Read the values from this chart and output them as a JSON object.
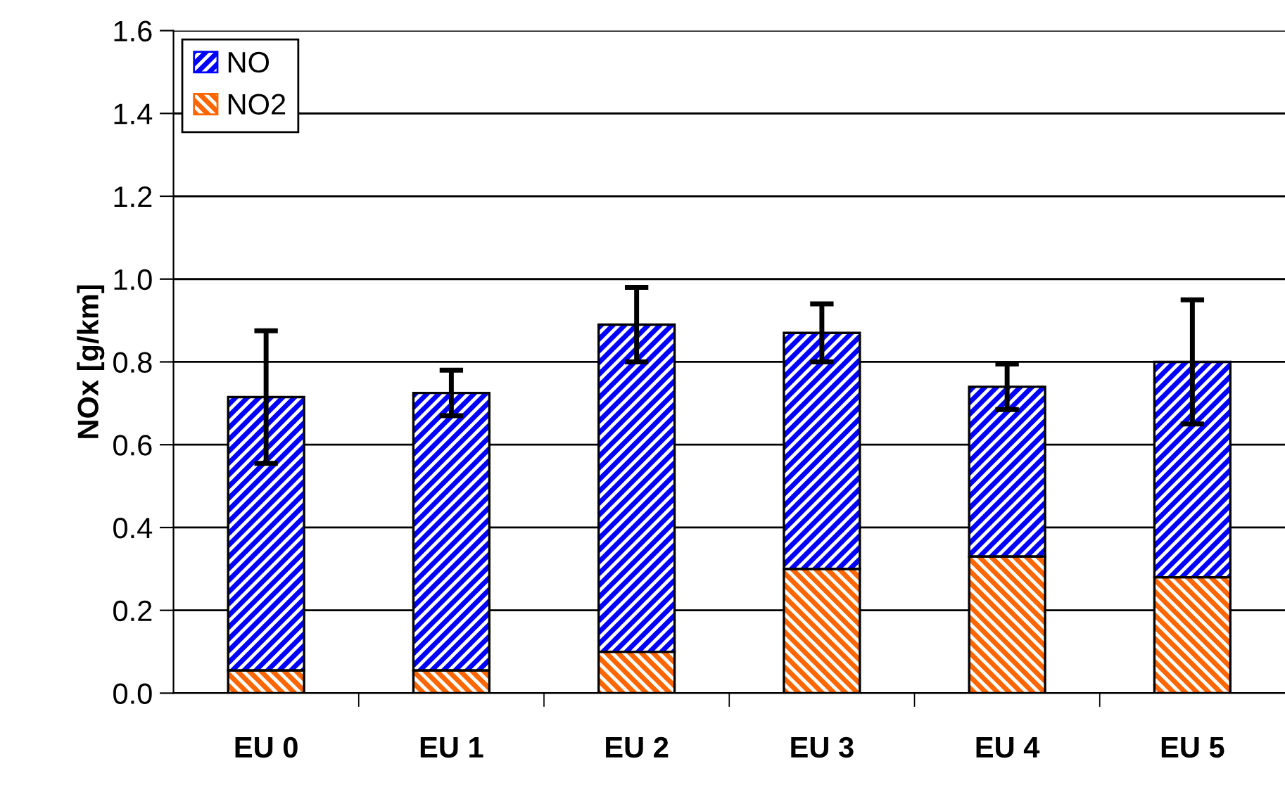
{
  "chart_data": {
    "type": "bar",
    "stacked": true,
    "ylabel": "NOx [g/km]",
    "categories": [
      "EU 0",
      "EU 1",
      "EU 2",
      "EU 3",
      "EU 4",
      "EU 5"
    ],
    "series": [
      {
        "name": "NO2",
        "color": "#ff6600",
        "values": [
          0.055,
          0.055,
          0.1,
          0.3,
          0.33,
          0.28
        ]
      },
      {
        "name": "NO",
        "color": "#0000ff",
        "values": [
          0.66,
          0.67,
          0.79,
          0.57,
          0.41,
          0.52
        ],
        "errors": [
          0.16,
          0.055,
          0.09,
          0.07,
          0.055,
          0.15
        ]
      }
    ],
    "ylim": [
      0,
      1.6
    ],
    "yticks": [
      {
        "value": 0,
        "label": "0.0"
      },
      {
        "value": 0.2,
        "label": "0.2"
      },
      {
        "value": 0.4,
        "label": "0.4"
      },
      {
        "value": 0.6,
        "label": "0.6"
      },
      {
        "value": 0.8,
        "label": "0.8"
      },
      {
        "value": 1.0,
        "label": "1.0"
      },
      {
        "value": 1.2,
        "label": "1.2"
      },
      {
        "value": 1.4,
        "label": "1.4"
      },
      {
        "value": 1.6,
        "label": "1.6"
      }
    ],
    "grid": "y",
    "legend": "top left"
  }
}
